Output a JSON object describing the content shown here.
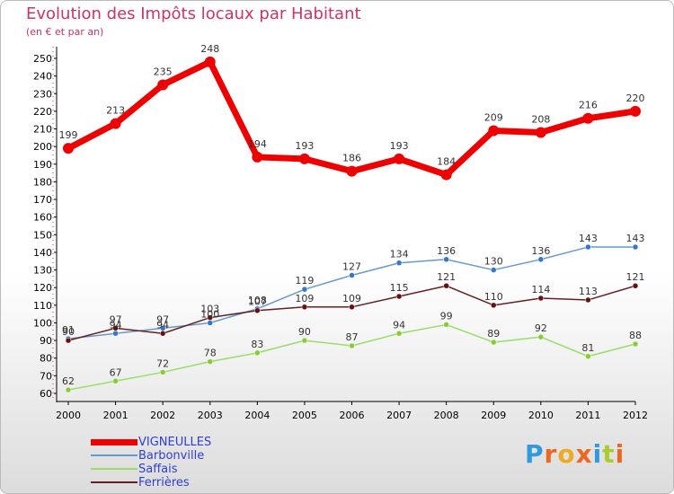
{
  "chart_data": {
    "type": "line",
    "title": "Evolution des Impôts locaux par Habitant",
    "subtitle": "(en € et par an)",
    "xlabel": "",
    "ylabel": "",
    "categories": [
      "2000",
      "2001",
      "2002",
      "2003",
      "2004",
      "2005",
      "2006",
      "2007",
      "2008",
      "2009",
      "2010",
      "2011",
      "2012"
    ],
    "ylim": [
      60,
      250
    ],
    "yticks": [
      60,
      70,
      80,
      90,
      100,
      110,
      120,
      130,
      140,
      150,
      160,
      170,
      180,
      190,
      200,
      210,
      220,
      230,
      240,
      250
    ],
    "grid": false,
    "legend_position": "bottom-left",
    "series": [
      {
        "name": "VIGNEULLES",
        "color": "#ee0000",
        "values": [
          199,
          213,
          235,
          248,
          194,
          193,
          186,
          193,
          184,
          209,
          208,
          216,
          220
        ]
      },
      {
        "name": "Barbonville",
        "color": "#6699cc",
        "values": [
          91,
          94,
          97,
          100,
          108,
          119,
          127,
          134,
          136,
          130,
          136,
          143,
          143
        ]
      },
      {
        "name": "Saffais",
        "color": "#99dd66",
        "values": [
          62,
          67,
          72,
          78,
          83,
          90,
          87,
          94,
          99,
          89,
          92,
          81,
          88
        ]
      },
      {
        "name": "Ferrières",
        "color": "#662222",
        "values": [
          90,
          97,
          94,
          103,
          107,
          109,
          109,
          115,
          121,
          110,
          114,
          113,
          121
        ]
      }
    ]
  },
  "logo": {
    "letters": [
      "P",
      "r",
      "o",
      "x",
      "i",
      "t",
      "i"
    ],
    "colors": [
      "#3399dd",
      "#ee6622",
      "#eeaa22",
      "#ee6622",
      "#3399dd",
      "#aacc33",
      "#ee6622"
    ]
  }
}
